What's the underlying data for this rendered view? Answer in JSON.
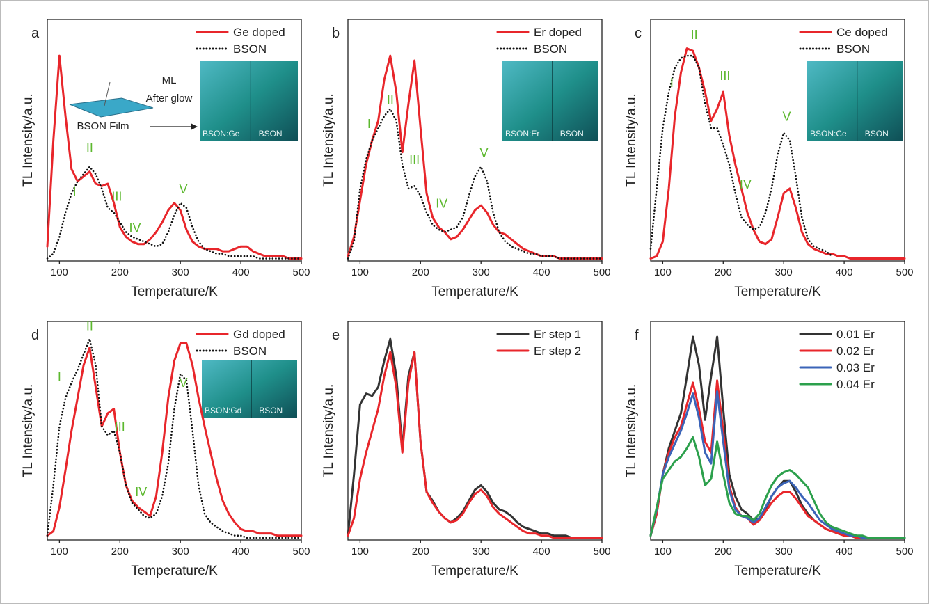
{
  "chart_data": [
    {
      "type": "line",
      "panel": "a",
      "xlabel": "Temperature/K",
      "ylabel": "TL Intensity/a.u.",
      "xlim": [
        80,
        500
      ],
      "ylim": [
        0,
        100
      ],
      "xticks": [
        100,
        200,
        300,
        400,
        500
      ],
      "legend": "upper right",
      "x": [
        80,
        90,
        100,
        110,
        120,
        130,
        140,
        150,
        160,
        170,
        180,
        190,
        200,
        210,
        220,
        230,
        240,
        250,
        260,
        270,
        280,
        290,
        300,
        310,
        320,
        330,
        340,
        350,
        360,
        370,
        380,
        390,
        400,
        410,
        420,
        430,
        440,
        450,
        460,
        470,
        480,
        490,
        500
      ],
      "series": [
        {
          "name": "Ge doped",
          "color": "#e8262b",
          "linestyle": "solid",
          "values": [
            6,
            50,
            85,
            60,
            38,
            33,
            35,
            37,
            32,
            31,
            32,
            24,
            14,
            10,
            8,
            7,
            7,
            9,
            12,
            16,
            21,
            24,
            21,
            13,
            8,
            6,
            5,
            5,
            5,
            4,
            4,
            5,
            6,
            6,
            4,
            3,
            2,
            2,
            2,
            2,
            1,
            1,
            1
          ]
        },
        {
          "name": "BSON",
          "color": "#111111",
          "linestyle": "dotted",
          "values": [
            1,
            3,
            10,
            20,
            28,
            33,
            36,
            39,
            36,
            30,
            22,
            20,
            16,
            12,
            10,
            9,
            8,
            7,
            6,
            7,
            12,
            19,
            24,
            22,
            14,
            8,
            5,
            4,
            3,
            3,
            2,
            2,
            2,
            2,
            2,
            1,
            1,
            1,
            1,
            1,
            1,
            1,
            1
          ]
        }
      ],
      "annotations": [
        {
          "text": "I",
          "x": 125,
          "y": 27
        },
        {
          "text": "II",
          "x": 150,
          "y": 45
        },
        {
          "text": "III",
          "x": 195,
          "y": 25
        },
        {
          "text": "IV",
          "x": 225,
          "y": 12
        },
        {
          "text": "V",
          "x": 305,
          "y": 28
        }
      ],
      "inset_labels": [
        "BSON:Ge",
        "BSON"
      ],
      "inset_notes": [
        "ML",
        "After glow",
        "BSON Film"
      ]
    },
    {
      "type": "line",
      "panel": "b",
      "xlabel": "Temperature/K",
      "ylabel": "TL Intensity/a.u.",
      "xlim": [
        80,
        500
      ],
      "ylim": [
        0,
        100
      ],
      "xticks": [
        100,
        200,
        300,
        400,
        500
      ],
      "legend": "upper right",
      "x": [
        80,
        90,
        100,
        110,
        120,
        130,
        140,
        150,
        160,
        170,
        180,
        190,
        200,
        210,
        220,
        230,
        240,
        250,
        260,
        270,
        280,
        290,
        300,
        310,
        320,
        330,
        340,
        350,
        360,
        370,
        380,
        390,
        400,
        410,
        420,
        430,
        440,
        450,
        460,
        470,
        480,
        490,
        500
      ],
      "series": [
        {
          "name": "Er doped",
          "color": "#e8262b",
          "linestyle": "solid",
          "values": [
            2,
            10,
            25,
            40,
            50,
            58,
            75,
            85,
            70,
            45,
            65,
            83,
            55,
            28,
            18,
            14,
            12,
            9,
            10,
            13,
            17,
            21,
            23,
            20,
            15,
            12,
            11,
            9,
            7,
            5,
            4,
            3,
            2,
            2,
            2,
            1,
            1,
            1,
            1,
            1,
            1,
            1,
            1
          ]
        },
        {
          "name": "BSON",
          "color": "#111111",
          "linestyle": "dotted",
          "values": [
            1,
            8,
            30,
            42,
            50,
            55,
            60,
            63,
            58,
            40,
            30,
            31,
            27,
            20,
            15,
            13,
            12,
            13,
            14,
            18,
            27,
            35,
            39,
            33,
            20,
            12,
            8,
            6,
            5,
            4,
            3,
            3,
            2,
            2,
            2,
            1,
            1,
            1,
            1,
            1,
            1,
            1,
            1
          ]
        }
      ],
      "annotations": [
        {
          "text": "I",
          "x": 115,
          "y": 55
        },
        {
          "text": "II",
          "x": 150,
          "y": 65
        },
        {
          "text": "III",
          "x": 190,
          "y": 40
        },
        {
          "text": "IV",
          "x": 235,
          "y": 22
        },
        {
          "text": "V",
          "x": 305,
          "y": 43
        }
      ],
      "inset_labels": [
        "BSON:Er",
        "BSON"
      ]
    },
    {
      "type": "line",
      "panel": "c",
      "xlabel": "Temperature/K",
      "ylabel": "TL Intensity/a.u.",
      "xlim": [
        80,
        500
      ],
      "ylim": [
        0,
        100
      ],
      "xticks": [
        100,
        200,
        300,
        400,
        500
      ],
      "legend": "upper right",
      "x": [
        80,
        90,
        100,
        110,
        120,
        130,
        140,
        150,
        160,
        170,
        180,
        190,
        200,
        210,
        220,
        230,
        240,
        250,
        260,
        270,
        280,
        290,
        300,
        310,
        320,
        330,
        340,
        350,
        360,
        370,
        380,
        390,
        400,
        410,
        420,
        430,
        440,
        450,
        460,
        470,
        480,
        490,
        500
      ],
      "series": [
        {
          "name": "Ce doped",
          "color": "#e8262b",
          "linestyle": "solid",
          "values": [
            1,
            2,
            8,
            30,
            60,
            78,
            88,
            87,
            80,
            70,
            58,
            63,
            70,
            52,
            40,
            30,
            20,
            13,
            8,
            7,
            9,
            18,
            28,
            30,
            22,
            12,
            7,
            5,
            4,
            3,
            3,
            2,
            2,
            1,
            1,
            1,
            1,
            1,
            1,
            1,
            1,
            1,
            1
          ]
        },
        {
          "name": "BSON",
          "color": "#111111",
          "linestyle": "dotted",
          "values": [
            5,
            30,
            55,
            70,
            80,
            84,
            85,
            85,
            80,
            65,
            55,
            55,
            48,
            40,
            28,
            18,
            15,
            13,
            14,
            20,
            30,
            44,
            53,
            50,
            35,
            18,
            9,
            6,
            5,
            4,
            2,
            null,
            null,
            null,
            null,
            null,
            null,
            null,
            null,
            null,
            null,
            null,
            null
          ]
        }
      ],
      "annotations": [
        {
          "text": "I",
          "x": 115,
          "y": 72
        },
        {
          "text": "II",
          "x": 152,
          "y": 92
        },
        {
          "text": "III",
          "x": 203,
          "y": 75
        },
        {
          "text": "IV",
          "x": 237,
          "y": 30
        },
        {
          "text": "V",
          "x": 305,
          "y": 58
        }
      ],
      "inset_labels": [
        "BSON:Ce",
        "BSON"
      ]
    },
    {
      "type": "line",
      "panel": "d",
      "xlabel": "Temperature/K",
      "ylabel": "TL Intensity/a.u.",
      "xlim": [
        80,
        500
      ],
      "ylim": [
        0,
        100
      ],
      "xticks": [
        100,
        200,
        300,
        400,
        500
      ],
      "legend": "upper right",
      "x": [
        80,
        90,
        100,
        110,
        120,
        130,
        140,
        150,
        160,
        170,
        180,
        190,
        200,
        210,
        220,
        230,
        240,
        250,
        260,
        270,
        280,
        290,
        300,
        310,
        320,
        330,
        340,
        350,
        360,
        370,
        380,
        390,
        400,
        410,
        420,
        430,
        440,
        450,
        460,
        470,
        480,
        490,
        500
      ],
      "series": [
        {
          "name": "Gd doped",
          "color": "#e8262b",
          "linestyle": "solid",
          "values": [
            2,
            4,
            15,
            32,
            50,
            65,
            80,
            88,
            70,
            52,
            58,
            60,
            40,
            25,
            18,
            15,
            13,
            11,
            20,
            40,
            65,
            82,
            90,
            90,
            80,
            65,
            52,
            40,
            28,
            18,
            12,
            8,
            5,
            4,
            4,
            3,
            3,
            3,
            2,
            2,
            2,
            2,
            2
          ]
        },
        {
          "name": "BSON",
          "color": "#111111",
          "linestyle": "dotted",
          "values": [
            2,
            25,
            52,
            65,
            72,
            78,
            85,
            92,
            80,
            52,
            48,
            50,
            40,
            25,
            17,
            14,
            11,
            10,
            12,
            20,
            35,
            60,
            76,
            73,
            50,
            25,
            12,
            8,
            6,
            4,
            3,
            2,
            2,
            1,
            1,
            1,
            1,
            1,
            1,
            1,
            1,
            1,
            1
          ]
        }
      ],
      "annotations": [
        {
          "text": "I",
          "x": 100,
          "y": 73
        },
        {
          "text": "II",
          "x": 150,
          "y": 96
        },
        {
          "text": "III",
          "x": 200,
          "y": 50
        },
        {
          "text": "IV",
          "x": 235,
          "y": 20
        },
        {
          "text": "V",
          "x": 305,
          "y": 70
        }
      ],
      "inset_labels": [
        "BSON:Gd",
        "BSON"
      ]
    },
    {
      "type": "line",
      "panel": "e",
      "xlabel": "Temperature/K",
      "ylabel": "TL Intensity/a.u.",
      "xlim": [
        80,
        500
      ],
      "ylim": [
        0,
        100
      ],
      "xticks": [
        100,
        200,
        300,
        400,
        500
      ],
      "legend": "upper right",
      "x": [
        80,
        90,
        100,
        110,
        120,
        130,
        140,
        150,
        160,
        170,
        180,
        190,
        200,
        210,
        220,
        230,
        240,
        250,
        260,
        270,
        280,
        290,
        300,
        310,
        320,
        330,
        340,
        350,
        360,
        370,
        380,
        390,
        400,
        410,
        420,
        430,
        440,
        450,
        460,
        470,
        480,
        490,
        500
      ],
      "series": [
        {
          "name": "Er step 1",
          "color": "#333333",
          "linestyle": "solid",
          "values": [
            2,
            30,
            62,
            67,
            66,
            70,
            82,
            92,
            75,
            42,
            75,
            86,
            45,
            22,
            18,
            13,
            10,
            8,
            10,
            13,
            18,
            23,
            25,
            22,
            17,
            14,
            13,
            11,
            8,
            6,
            5,
            4,
            3,
            3,
            2,
            2,
            2,
            1,
            1,
            1,
            1,
            1,
            1
          ]
        },
        {
          "name": "Er step 2",
          "color": "#e8262b",
          "linestyle": "solid",
          "values": [
            2,
            10,
            28,
            40,
            50,
            60,
            75,
            86,
            70,
            40,
            72,
            86,
            45,
            22,
            17,
            13,
            10,
            8,
            9,
            12,
            17,
            21,
            23,
            20,
            15,
            12,
            10,
            8,
            6,
            4,
            3,
            3,
            2,
            2,
            1,
            1,
            1,
            1,
            1,
            1,
            1,
            1,
            1
          ]
        }
      ]
    },
    {
      "type": "line",
      "panel": "f",
      "xlabel": "Temperature/K",
      "ylabel": "TL Intensity/a.u.",
      "xlim": [
        80,
        500
      ],
      "ylim": [
        0,
        100
      ],
      "xticks": [
        100,
        200,
        300,
        400,
        500
      ],
      "legend": "upper right",
      "x": [
        80,
        90,
        100,
        110,
        120,
        130,
        140,
        150,
        160,
        170,
        180,
        190,
        200,
        210,
        220,
        230,
        240,
        250,
        260,
        270,
        280,
        290,
        300,
        310,
        320,
        330,
        340,
        350,
        360,
        370,
        380,
        390,
        400,
        410,
        420,
        430,
        440,
        450,
        460,
        470,
        480,
        490,
        500
      ],
      "series": [
        {
          "name": "0.01 Er",
          "color": "#333333",
          "linestyle": "solid",
          "values": [
            2,
            12,
            30,
            42,
            50,
            58,
            75,
            93,
            80,
            55,
            75,
            93,
            60,
            30,
            20,
            14,
            12,
            9,
            10,
            14,
            20,
            24,
            27,
            27,
            22,
            16,
            12,
            9,
            7,
            5,
            4,
            3,
            2,
            2,
            1,
            1,
            1,
            1,
            1,
            1,
            1,
            1,
            1
          ]
        },
        {
          "name": "0.02 Er",
          "color": "#e8262b",
          "linestyle": "solid",
          "values": [
            2,
            12,
            30,
            40,
            47,
            52,
            62,
            72,
            60,
            45,
            40,
            73,
            50,
            25,
            15,
            11,
            10,
            7,
            9,
            13,
            17,
            20,
            22,
            22,
            19,
            15,
            11,
            9,
            7,
            5,
            4,
            3,
            2,
            2,
            1,
            1,
            1,
            1,
            1,
            1,
            1,
            1,
            1
          ]
        },
        {
          "name": "0.03 Er",
          "color": "#3b64b8",
          "linestyle": "solid",
          "values": [
            2,
            14,
            30,
            38,
            44,
            50,
            58,
            67,
            56,
            40,
            35,
            68,
            45,
            23,
            14,
            11,
            10,
            8,
            10,
            15,
            20,
            24,
            26,
            27,
            24,
            20,
            17,
            13,
            9,
            7,
            5,
            4,
            3,
            2,
            2,
            1,
            1,
            1,
            1,
            1,
            1,
            1,
            1
          ]
        },
        {
          "name": "0.04 Er",
          "color": "#2ca04c",
          "linestyle": "solid",
          "values": [
            2,
            15,
            28,
            32,
            36,
            38,
            42,
            47,
            38,
            25,
            28,
            45,
            30,
            17,
            12,
            11,
            11,
            9,
            12,
            19,
            25,
            29,
            31,
            32,
            30,
            27,
            24,
            18,
            12,
            8,
            6,
            5,
            4,
            3,
            2,
            2,
            1,
            1,
            1,
            1,
            1,
            1,
            1
          ]
        }
      ]
    }
  ]
}
